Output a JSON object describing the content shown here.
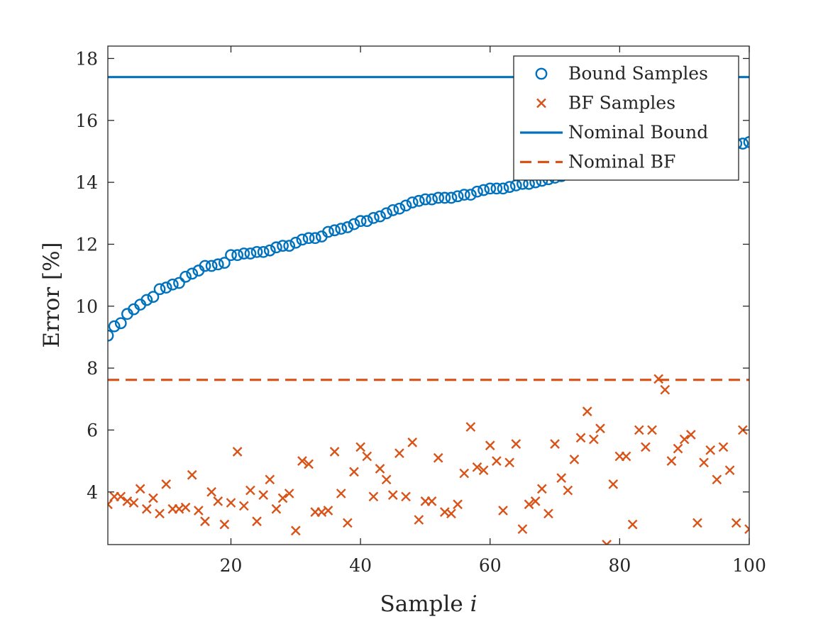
{
  "chart_data": {
    "type": "scatter",
    "xlabel": "Sample",
    "xlabel_var": "i",
    "ylabel": "Error [%]",
    "xlim": [
      1,
      100
    ],
    "ylim": [
      2.3,
      18.4
    ],
    "xticks": [
      20,
      40,
      60,
      80,
      100
    ],
    "yticks": [
      4,
      6,
      8,
      10,
      12,
      14,
      16,
      18
    ],
    "grid": false,
    "legend_position": "top-right",
    "colors": {
      "bound": "#0072BD",
      "bf": "#D95319",
      "axis": "#262626"
    },
    "series": [
      {
        "name": "Bound Samples",
        "kind": "scatter",
        "marker": "circle",
        "x": [
          1,
          2,
          3,
          4,
          5,
          6,
          7,
          8,
          9,
          10,
          11,
          12,
          13,
          14,
          15,
          16,
          17,
          18,
          19,
          20,
          21,
          22,
          23,
          24,
          25,
          26,
          27,
          28,
          29,
          30,
          31,
          32,
          33,
          34,
          35,
          36,
          37,
          38,
          39,
          40,
          41,
          42,
          43,
          44,
          45,
          46,
          47,
          48,
          49,
          50,
          51,
          52,
          53,
          54,
          55,
          56,
          57,
          58,
          59,
          60,
          61,
          62,
          63,
          64,
          65,
          66,
          67,
          68,
          69,
          70,
          71,
          72,
          73,
          74,
          75,
          76,
          77,
          78,
          79,
          80,
          81,
          82,
          83,
          84,
          85,
          86,
          87,
          88,
          89,
          90,
          91,
          92,
          93,
          94,
          95,
          96,
          97,
          98,
          99,
          100
        ],
        "y": [
          9.05,
          9.35,
          9.45,
          9.75,
          9.9,
          10.05,
          10.2,
          10.3,
          10.55,
          10.6,
          10.7,
          10.75,
          10.95,
          11.05,
          11.15,
          11.3,
          11.3,
          11.35,
          11.4,
          11.65,
          11.65,
          11.7,
          11.7,
          11.75,
          11.75,
          11.8,
          11.9,
          11.95,
          11.95,
          12.05,
          12.15,
          12.2,
          12.2,
          12.25,
          12.4,
          12.45,
          12.5,
          12.55,
          12.65,
          12.75,
          12.75,
          12.85,
          12.9,
          13.0,
          13.1,
          13.15,
          13.25,
          13.35,
          13.4,
          13.45,
          13.45,
          13.5,
          13.5,
          13.5,
          13.55,
          13.6,
          13.6,
          13.7,
          13.75,
          13.8,
          13.8,
          13.8,
          13.85,
          13.9,
          13.95,
          13.95,
          14.0,
          14.05,
          14.1,
          14.15,
          14.2,
          14.25,
          14.3,
          14.35,
          14.4,
          14.45,
          14.5,
          14.55,
          14.6,
          14.65,
          14.7,
          14.75,
          14.8,
          14.85,
          14.9,
          14.9,
          14.95,
          15.0,
          15.0,
          15.05,
          15.05,
          15.1,
          15.1,
          15.15,
          15.15,
          15.2,
          15.2,
          15.25,
          15.25,
          15.3
        ]
      },
      {
        "name": "BF Samples",
        "kind": "scatter",
        "marker": "x",
        "x": [
          1,
          2,
          3,
          4,
          5,
          6,
          7,
          8,
          9,
          10,
          11,
          12,
          13,
          14,
          15,
          16,
          17,
          18,
          19,
          20,
          21,
          22,
          23,
          24,
          25,
          26,
          27,
          28,
          29,
          30,
          31,
          32,
          33,
          34,
          35,
          36,
          37,
          38,
          39,
          40,
          41,
          42,
          43,
          44,
          45,
          46,
          47,
          48,
          49,
          50,
          51,
          52,
          53,
          54,
          55,
          56,
          57,
          58,
          59,
          60,
          61,
          62,
          63,
          64,
          65,
          66,
          67,
          68,
          69,
          70,
          71,
          72,
          73,
          74,
          75,
          76,
          77,
          78,
          79,
          80,
          81,
          82,
          83,
          84,
          85,
          86,
          87,
          88,
          89,
          90,
          91,
          92,
          93,
          94,
          95,
          96,
          97,
          98,
          99,
          100
        ],
        "y": [
          3.6,
          3.85,
          3.85,
          3.7,
          3.65,
          4.1,
          3.45,
          3.8,
          3.3,
          4.25,
          3.45,
          3.45,
          3.5,
          4.55,
          3.4,
          3.05,
          4.0,
          3.7,
          2.95,
          3.65,
          5.3,
          3.55,
          4.05,
          3.05,
          3.9,
          4.4,
          3.45,
          3.8,
          3.95,
          2.75,
          5.0,
          4.9,
          3.35,
          3.35,
          3.4,
          5.3,
          3.95,
          3.0,
          4.65,
          5.45,
          5.15,
          3.85,
          4.75,
          4.4,
          3.9,
          5.25,
          3.85,
          5.6,
          3.1,
          3.7,
          3.7,
          5.1,
          3.35,
          3.3,
          3.6,
          4.6,
          6.1,
          4.8,
          4.7,
          5.5,
          5.0,
          3.4,
          4.95,
          5.55,
          2.8,
          3.6,
          3.7,
          4.1,
          3.3,
          5.55,
          4.45,
          4.05,
          5.05,
          5.75,
          6.6,
          5.7,
          6.05,
          2.3,
          4.25,
          5.15,
          5.15,
          2.95,
          6.0,
          5.45,
          6.0,
          7.65,
          7.3,
          5.0,
          5.4,
          5.7,
          5.85,
          3.0,
          4.95,
          5.35,
          4.4,
          5.45,
          4.7,
          3.0,
          6.0,
          2.8
        ]
      },
      {
        "name": "Nominal Bound",
        "kind": "hline",
        "style": "solid",
        "y": 17.4
      },
      {
        "name": "Nominal BF",
        "kind": "hline",
        "style": "dashed",
        "y": 7.62
      }
    ]
  }
}
